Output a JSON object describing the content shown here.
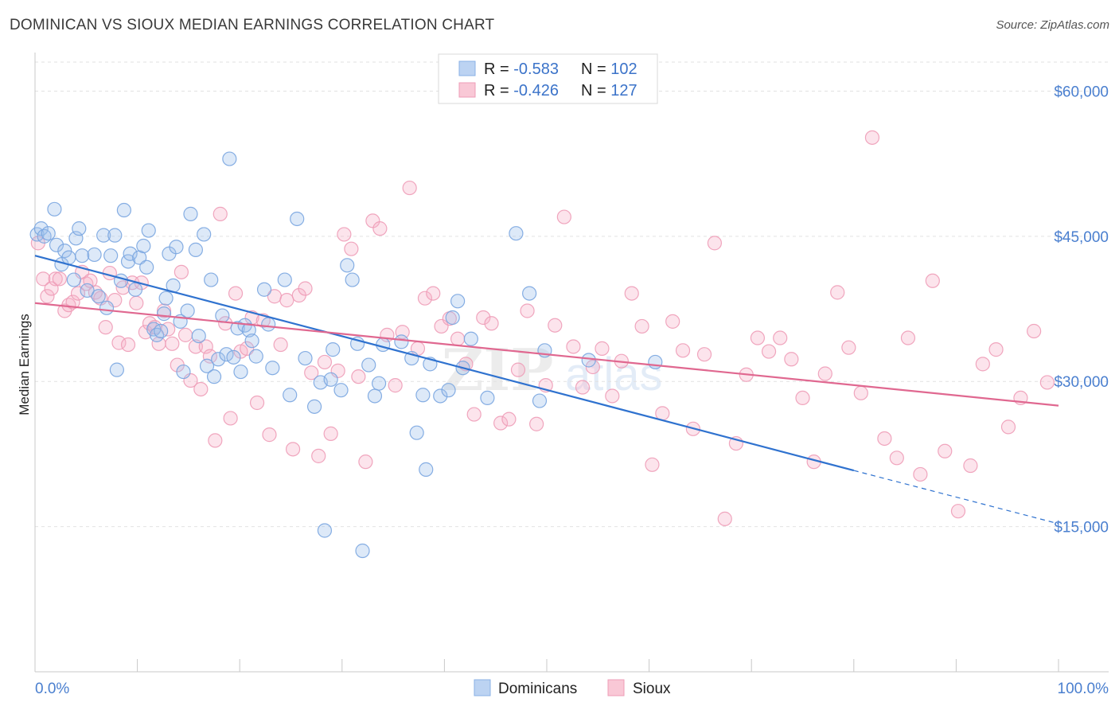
{
  "title": "DOMINICAN VS SIOUX MEDIAN EARNINGS CORRELATION CHART",
  "source": "Source: ZipAtlas.com",
  "watermark": {
    "zip": "ZIP",
    "atlas": "atlas"
  },
  "chart_data": {
    "type": "scatter",
    "ylabel": "Median Earnings",
    "xlim": [
      0,
      100
    ],
    "ylim": [
      0,
      63000
    ],
    "x_tick_labels": [
      "0.0%",
      "100.0%"
    ],
    "y_ticks": [
      15000,
      30000,
      45000,
      60000
    ],
    "y_tick_labels": [
      "$15,000",
      "$30,000",
      "$45,000",
      "$60,000"
    ],
    "grid": "horizontal dashed",
    "legend_position": "top-center",
    "colors": {
      "dominicans": "#9dc0ec",
      "dominicans_line": "#2f72cf",
      "sioux": "#f5b3c8",
      "sioux_line": "#e06890"
    },
    "legend": [
      {
        "r_label": "R = ",
        "r": "-0.583",
        "n_label": "N = ",
        "n": "102"
      },
      {
        "r_label": "R = ",
        "r": "-0.426",
        "n_label": "N = ",
        "n": "127"
      }
    ],
    "bottom_legend": [
      "Dominicans",
      "Sioux"
    ],
    "series": [
      {
        "name": "Dominicans",
        "trend": {
          "x0": 0,
          "y0": 43000,
          "x1": 80,
          "y1": 20800,
          "dash_x1": 100,
          "dash_y1": 15300
        },
        "points": [
          [
            0.2,
            45200
          ],
          [
            0.6,
            45800
          ],
          [
            0.9,
            45000
          ],
          [
            1.3,
            45300
          ],
          [
            1.9,
            47800
          ],
          [
            2.1,
            44100
          ],
          [
            2.6,
            42100
          ],
          [
            2.9,
            43500
          ],
          [
            3.3,
            42800
          ],
          [
            3.8,
            40500
          ],
          [
            4.0,
            44800
          ],
          [
            4.3,
            45800
          ],
          [
            4.6,
            43000
          ],
          [
            5.1,
            39400
          ],
          [
            5.8,
            43100
          ],
          [
            6.2,
            38800
          ],
          [
            6.7,
            45100
          ],
          [
            7.0,
            37600
          ],
          [
            7.4,
            43000
          ],
          [
            7.8,
            45100
          ],
          [
            8.0,
            31200
          ],
          [
            8.4,
            40400
          ],
          [
            8.7,
            47700
          ],
          [
            9.1,
            42400
          ],
          [
            9.3,
            43200
          ],
          [
            9.8,
            39500
          ],
          [
            10.2,
            42800
          ],
          [
            10.6,
            44000
          ],
          [
            10.9,
            41800
          ],
          [
            11.1,
            45600
          ],
          [
            11.6,
            35400
          ],
          [
            11.9,
            34800
          ],
          [
            12.3,
            35200
          ],
          [
            12.6,
            37000
          ],
          [
            12.8,
            38600
          ],
          [
            13.1,
            43200
          ],
          [
            13.5,
            39900
          ],
          [
            13.8,
            43900
          ],
          [
            14.2,
            36200
          ],
          [
            14.5,
            31000
          ],
          [
            14.9,
            37300
          ],
          [
            15.2,
            47300
          ],
          [
            15.7,
            43600
          ],
          [
            16.0,
            34700
          ],
          [
            16.5,
            45200
          ],
          [
            16.8,
            31600
          ],
          [
            17.2,
            40500
          ],
          [
            17.5,
            30500
          ],
          [
            17.9,
            32300
          ],
          [
            18.3,
            36800
          ],
          [
            18.7,
            32800
          ],
          [
            19.0,
            53000
          ],
          [
            19.4,
            32500
          ],
          [
            19.8,
            35500
          ],
          [
            20.1,
            31000
          ],
          [
            20.5,
            35800
          ],
          [
            20.9,
            35300
          ],
          [
            21.2,
            34200
          ],
          [
            21.6,
            32600
          ],
          [
            22.4,
            39500
          ],
          [
            22.8,
            35900
          ],
          [
            23.2,
            31400
          ],
          [
            24.4,
            40500
          ],
          [
            24.9,
            28600
          ],
          [
            25.6,
            46800
          ],
          [
            26.4,
            32400
          ],
          [
            27.3,
            27400
          ],
          [
            27.9,
            29900
          ],
          [
            28.3,
            14600
          ],
          [
            28.9,
            30200
          ],
          [
            29.1,
            33300
          ],
          [
            29.9,
            29100
          ],
          [
            30.5,
            42000
          ],
          [
            31.0,
            40500
          ],
          [
            31.5,
            33900
          ],
          [
            32.0,
            12500
          ],
          [
            32.6,
            31700
          ],
          [
            33.2,
            28500
          ],
          [
            33.6,
            29800
          ],
          [
            34.0,
            33800
          ],
          [
            35.8,
            34100
          ],
          [
            36.8,
            32400
          ],
          [
            37.3,
            24700
          ],
          [
            37.9,
            28600
          ],
          [
            38.2,
            20900
          ],
          [
            38.6,
            31800
          ],
          [
            39.6,
            28500
          ],
          [
            40.4,
            29100
          ],
          [
            40.8,
            36600
          ],
          [
            41.3,
            38300
          ],
          [
            41.8,
            31400
          ],
          [
            42.6,
            34400
          ],
          [
            44.2,
            28300
          ],
          [
            47.0,
            45300
          ],
          [
            48.3,
            39100
          ],
          [
            49.3,
            28000
          ],
          [
            49.8,
            33200
          ],
          [
            54.1,
            32200
          ],
          [
            60.6,
            32000
          ]
        ]
      },
      {
        "name": "Sioux",
        "trend": {
          "x0": 0,
          "y0": 38100,
          "x1": 100,
          "y1": 27500
        },
        "points": [
          [
            0.3,
            44300
          ],
          [
            0.8,
            40600
          ],
          [
            1.2,
            38800
          ],
          [
            1.6,
            39600
          ],
          [
            2.0,
            40600
          ],
          [
            2.4,
            40600
          ],
          [
            2.9,
            37300
          ],
          [
            3.3,
            37900
          ],
          [
            3.7,
            38200
          ],
          [
            4.2,
            39100
          ],
          [
            4.6,
            41300
          ],
          [
            5.0,
            40100
          ],
          [
            5.4,
            40400
          ],
          [
            5.9,
            39200
          ],
          [
            6.4,
            38600
          ],
          [
            6.9,
            35600
          ],
          [
            7.3,
            41200
          ],
          [
            7.8,
            38400
          ],
          [
            8.2,
            34000
          ],
          [
            8.6,
            39700
          ],
          [
            9.1,
            33800
          ],
          [
            9.5,
            40200
          ],
          [
            9.9,
            38100
          ],
          [
            10.4,
            40200
          ],
          [
            10.8,
            35100
          ],
          [
            11.2,
            36000
          ],
          [
            11.7,
            35600
          ],
          [
            12.1,
            33900
          ],
          [
            12.6,
            37300
          ],
          [
            13.0,
            35400
          ],
          [
            13.4,
            33900
          ],
          [
            13.9,
            31700
          ],
          [
            14.3,
            41300
          ],
          [
            14.7,
            34800
          ],
          [
            15.2,
            30100
          ],
          [
            15.7,
            33600
          ],
          [
            16.2,
            29200
          ],
          [
            16.7,
            33600
          ],
          [
            17.1,
            32600
          ],
          [
            17.6,
            23900
          ],
          [
            18.1,
            47300
          ],
          [
            18.6,
            36000
          ],
          [
            19.1,
            26200
          ],
          [
            19.6,
            39100
          ],
          [
            20.1,
            33100
          ],
          [
            20.7,
            33400
          ],
          [
            21.2,
            36600
          ],
          [
            21.7,
            27800
          ],
          [
            22.3,
            36300
          ],
          [
            22.9,
            24500
          ],
          [
            23.4,
            38800
          ],
          [
            24.0,
            33800
          ],
          [
            24.6,
            38400
          ],
          [
            25.2,
            23000
          ],
          [
            25.8,
            38900
          ],
          [
            26.4,
            39600
          ],
          [
            27.0,
            30900
          ],
          [
            27.7,
            22300
          ],
          [
            28.3,
            32000
          ],
          [
            28.9,
            24600
          ],
          [
            29.6,
            31100
          ],
          [
            30.2,
            45200
          ],
          [
            30.9,
            43700
          ],
          [
            31.6,
            30500
          ],
          [
            32.3,
            21700
          ],
          [
            33.0,
            46600
          ],
          [
            33.7,
            45800
          ],
          [
            34.4,
            34800
          ],
          [
            35.2,
            29600
          ],
          [
            35.9,
            35100
          ],
          [
            36.6,
            50000
          ],
          [
            37.4,
            33400
          ],
          [
            38.1,
            38600
          ],
          [
            38.9,
            39100
          ],
          [
            39.7,
            35700
          ],
          [
            40.5,
            36500
          ],
          [
            41.3,
            34400
          ],
          [
            42.1,
            31800
          ],
          [
            42.9,
            26600
          ],
          [
            43.8,
            36600
          ],
          [
            44.6,
            36000
          ],
          [
            45.5,
            25700
          ],
          [
            46.3,
            26100
          ],
          [
            47.2,
            31200
          ],
          [
            48.1,
            37300
          ],
          [
            49.0,
            25600
          ],
          [
            49.9,
            29600
          ],
          [
            50.8,
            35800
          ],
          [
            51.7,
            47000
          ],
          [
            52.6,
            33600
          ],
          [
            53.5,
            29400
          ],
          [
            54.5,
            31500
          ],
          [
            55.4,
            33400
          ],
          [
            56.4,
            28500
          ],
          [
            57.3,
            32100
          ],
          [
            58.3,
            39100
          ],
          [
            59.3,
            35700
          ],
          [
            60.3,
            21400
          ],
          [
            61.3,
            26700
          ],
          [
            62.3,
            36200
          ],
          [
            63.3,
            33200
          ],
          [
            64.3,
            25100
          ],
          [
            65.4,
            32800
          ],
          [
            66.4,
            44300
          ],
          [
            67.4,
            15800
          ],
          [
            68.5,
            23600
          ],
          [
            69.5,
            30700
          ],
          [
            70.6,
            34500
          ],
          [
            71.7,
            33100
          ],
          [
            72.8,
            34500
          ],
          [
            73.9,
            32300
          ],
          [
            75.0,
            28300
          ],
          [
            76.1,
            21700
          ],
          [
            77.2,
            30800
          ],
          [
            78.4,
            39200
          ],
          [
            79.5,
            33500
          ],
          [
            80.7,
            28800
          ],
          [
            81.8,
            55200
          ],
          [
            83.0,
            24100
          ],
          [
            84.2,
            22100
          ],
          [
            85.3,
            34500
          ],
          [
            86.5,
            20400
          ],
          [
            87.7,
            40400
          ],
          [
            88.9,
            22800
          ],
          [
            90.2,
            16600
          ],
          [
            91.4,
            21300
          ],
          [
            92.6,
            31800
          ],
          [
            93.9,
            33300
          ],
          [
            95.1,
            25300
          ],
          [
            96.3,
            28300
          ],
          [
            97.6,
            35200
          ],
          [
            98.9,
            29900
          ]
        ]
      }
    ]
  }
}
